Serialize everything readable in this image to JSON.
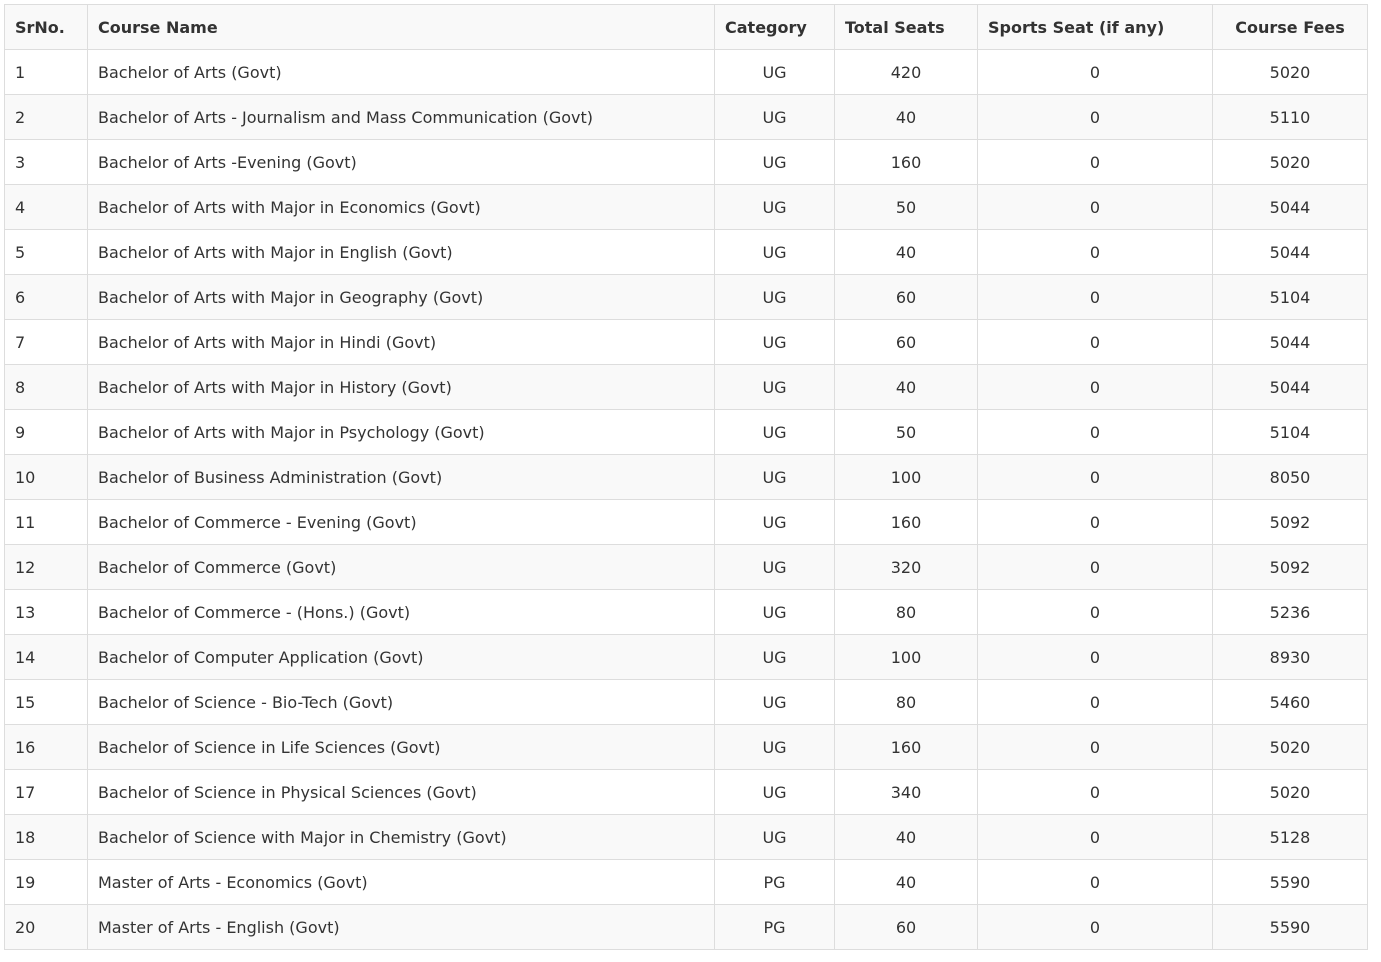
{
  "table": {
    "headers": [
      "SrNo.",
      "Course Name",
      "Category",
      "Total Seats",
      "Sports Seat (if any)",
      "Course Fees"
    ],
    "rows": [
      [
        "1",
        "Bachelor of Arts (Govt)",
        "UG",
        "420",
        "0",
        "5020"
      ],
      [
        "2",
        "Bachelor of Arts - Journalism and Mass Communication (Govt)",
        "UG",
        "40",
        "0",
        "5110"
      ],
      [
        "3",
        "Bachelor of Arts -Evening (Govt)",
        "UG",
        "160",
        "0",
        "5020"
      ],
      [
        "4",
        "Bachelor of Arts with Major in Economics (Govt)",
        "UG",
        "50",
        "0",
        "5044"
      ],
      [
        "5",
        "Bachelor of Arts with Major in English (Govt)",
        "UG",
        "40",
        "0",
        "5044"
      ],
      [
        "6",
        "Bachelor of Arts with Major in Geography (Govt)",
        "UG",
        "60",
        "0",
        "5104"
      ],
      [
        "7",
        "Bachelor of Arts with Major in Hindi (Govt)",
        "UG",
        "60",
        "0",
        "5044"
      ],
      [
        "8",
        "Bachelor of Arts with Major in History (Govt)",
        "UG",
        "40",
        "0",
        "5044"
      ],
      [
        "9",
        "Bachelor of Arts with Major in Psychology (Govt)",
        "UG",
        "50",
        "0",
        "5104"
      ],
      [
        "10",
        "Bachelor of Business Administration (Govt)",
        "UG",
        "100",
        "0",
        "8050"
      ],
      [
        "11",
        "Bachelor of Commerce - Evening (Govt)",
        "UG",
        "160",
        "0",
        "5092"
      ],
      [
        "12",
        "Bachelor of Commerce (Govt)",
        "UG",
        "320",
        "0",
        "5092"
      ],
      [
        "13",
        "Bachelor of Commerce - (Hons.) (Govt)",
        "UG",
        "80",
        "0",
        "5236"
      ],
      [
        "14",
        "Bachelor of Computer Application (Govt)",
        "UG",
        "100",
        "0",
        "8930"
      ],
      [
        "15",
        "Bachelor of Science - Bio-Tech (Govt)",
        "UG",
        "80",
        "0",
        "5460"
      ],
      [
        "16",
        "Bachelor of Science in Life Sciences (Govt)",
        "UG",
        "160",
        "0",
        "5020"
      ],
      [
        "17",
        "Bachelor of Science in Physical Sciences (Govt)",
        "UG",
        "340",
        "0",
        "5020"
      ],
      [
        "18",
        "Bachelor of Science with Major in Chemistry (Govt)",
        "UG",
        "40",
        "0",
        "5128"
      ],
      [
        "19",
        "Master of Arts - Economics (Govt)",
        "PG",
        "40",
        "0",
        "5590"
      ],
      [
        "20",
        "Master of Arts - English (Govt)",
        "PG",
        "60",
        "0",
        "5590"
      ]
    ]
  }
}
